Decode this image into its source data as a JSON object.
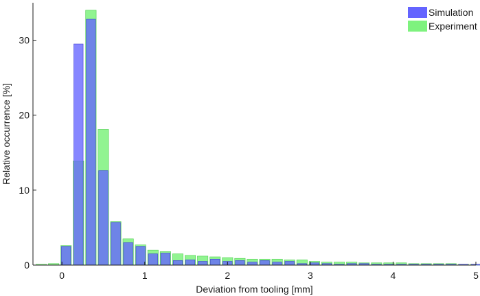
{
  "chart_data": {
    "type": "bar",
    "xlabel": "Deviation from tooling [mm]",
    "ylabel": "Relative occurrence [%]",
    "xlim": [
      -0.35,
      5.0
    ],
    "ylim": [
      0,
      35
    ],
    "xticks": [
      "0",
      "1",
      "2",
      "3",
      "4",
      "5"
    ],
    "xtick_values": [
      0,
      1,
      2,
      3,
      4,
      5
    ],
    "yticks": [
      "0",
      "10",
      "20",
      "30"
    ],
    "ytick_values": [
      0,
      10,
      20,
      30
    ],
    "grid": false,
    "legend_position": "top-right",
    "x": [
      -0.25,
      -0.1,
      0.05,
      0.2,
      0.35,
      0.5,
      0.65,
      0.8,
      0.95,
      1.1,
      1.25,
      1.4,
      1.55,
      1.7,
      1.85,
      2.0,
      2.15,
      2.3,
      2.45,
      2.6,
      2.75,
      2.9,
      3.05,
      3.2,
      3.35,
      3.5,
      3.65,
      3.8,
      3.95,
      4.1,
      4.25,
      4.4,
      4.55,
      4.7,
      4.85,
      5.0
    ],
    "series": [
      {
        "name": "Simulation",
        "color": "#6464ff",
        "values": [
          0.0,
          0.0,
          2.5,
          29.5,
          32.8,
          12.6,
          5.7,
          3.0,
          2.5,
          1.5,
          1.6,
          0.6,
          0.7,
          0.5,
          0.8,
          0.5,
          0.6,
          0.4,
          0.6,
          0.4,
          0.5,
          0.2,
          0.3,
          0.2,
          0.1,
          0.2,
          0.2,
          0.1,
          0.1,
          0.1,
          0.1,
          0.1,
          0.1,
          0.1,
          0.1,
          0.1
        ]
      },
      {
        "name": "Experiment",
        "color": "#7ef27e",
        "values": [
          0.1,
          0.2,
          2.6,
          13.9,
          34.0,
          18.1,
          5.8,
          3.5,
          2.7,
          2.0,
          1.8,
          1.5,
          1.3,
          1.2,
          1.1,
          1.0,
          0.9,
          0.8,
          0.8,
          0.8,
          0.7,
          0.7,
          0.5,
          0.4,
          0.4,
          0.4,
          0.3,
          0.3,
          0.3,
          0.3,
          0.2,
          0.2,
          0.2,
          0.2,
          0.1,
          0.1
        ]
      }
    ]
  }
}
